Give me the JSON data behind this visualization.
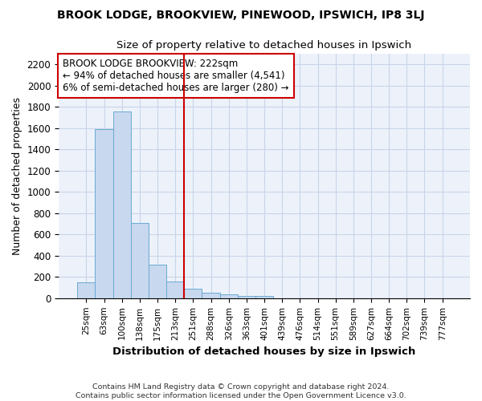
{
  "title": "BROOK LODGE, BROOKVIEW, PINEWOOD, IPSWICH, IP8 3LJ",
  "subtitle": "Size of property relative to detached houses in Ipswich",
  "xlabel": "Distribution of detached houses by size in Ipswich",
  "ylabel": "Number of detached properties",
  "bar_color": "#c8d8ee",
  "bar_edge_color": "#6aaad4",
  "categories": [
    "25sqm",
    "63sqm",
    "100sqm",
    "138sqm",
    "175sqm",
    "213sqm",
    "251sqm",
    "288sqm",
    "326sqm",
    "363sqm",
    "401sqm",
    "439sqm",
    "476sqm",
    "514sqm",
    "551sqm",
    "589sqm",
    "627sqm",
    "664sqm",
    "702sqm",
    "739sqm",
    "777sqm"
  ],
  "values": [
    150,
    1590,
    1755,
    710,
    315,
    155,
    90,
    55,
    35,
    25,
    20,
    0,
    0,
    0,
    0,
    0,
    0,
    0,
    0,
    0,
    0
  ],
  "ylim": [
    0,
    2300
  ],
  "yticks": [
    0,
    200,
    400,
    600,
    800,
    1000,
    1200,
    1400,
    1600,
    1800,
    2000,
    2200
  ],
  "vline_color": "#cc0000",
  "annotation_text": "BROOK LODGE BROOKVIEW: 222sqm\n← 94% of detached houses are smaller (4,541)\n6% of semi-detached houses are larger (280) →",
  "annotation_box_color": "#ffffff",
  "annotation_box_edge": "#cc0000",
  "footer_line1": "Contains HM Land Registry data © Crown copyright and database right 2024.",
  "footer_line2": "Contains public sector information licensed under the Open Government Licence v3.0.",
  "grid_color": "#c8d4e8",
  "background_color": "#edf2fa"
}
